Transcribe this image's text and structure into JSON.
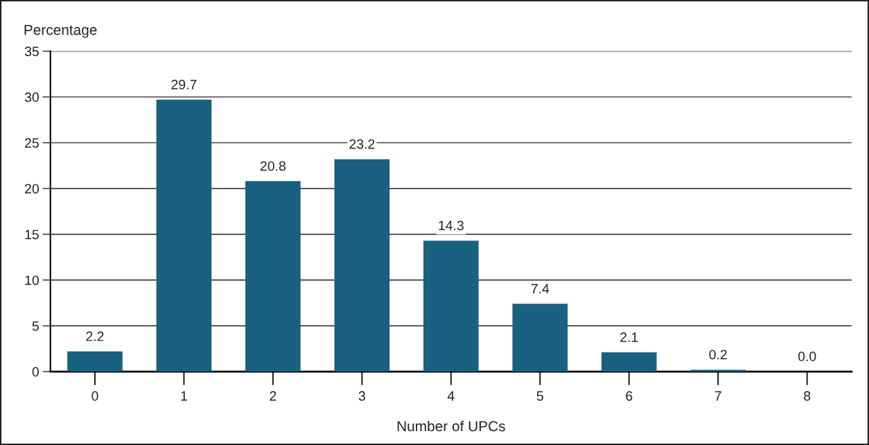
{
  "chart_data": {
    "type": "bar",
    "ylabel": "Percentage",
    "xlabel": "Number of UPCs",
    "categories": [
      "0",
      "1",
      "2",
      "3",
      "4",
      "5",
      "6",
      "7",
      "8"
    ],
    "values": [
      2.2,
      29.7,
      20.8,
      23.2,
      14.3,
      7.4,
      2.1,
      0.2,
      0.0
    ],
    "value_labels": [
      "2.2",
      "29.7",
      "20.8",
      "23.2",
      "14.3",
      "7.4",
      "2.1",
      "0.2",
      "0.0"
    ],
    "color": "#1a6080",
    "ylim": [
      0,
      35
    ],
    "yticks": [
      0,
      5,
      10,
      15,
      20,
      25,
      30,
      35
    ],
    "grid": "y"
  }
}
